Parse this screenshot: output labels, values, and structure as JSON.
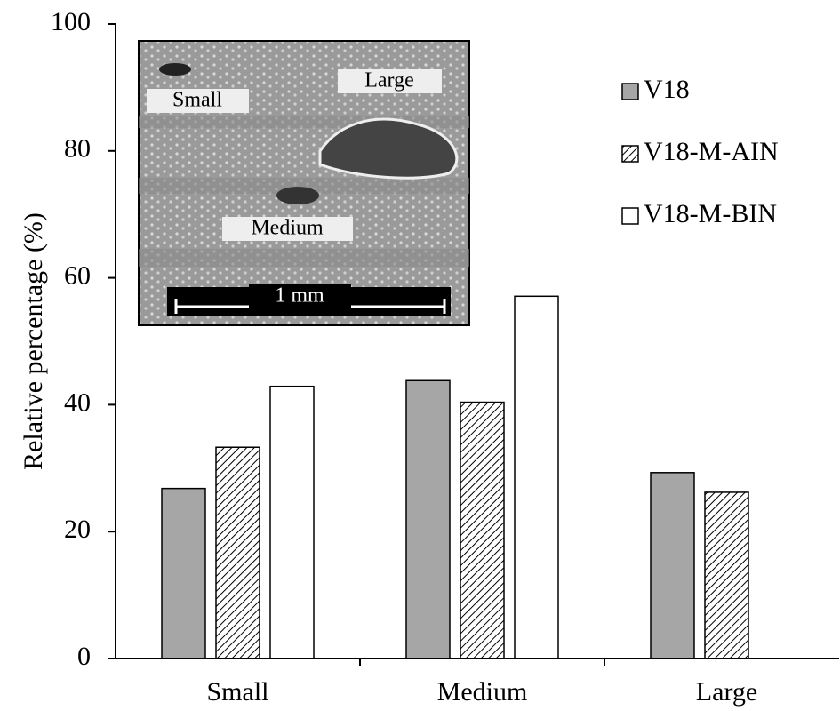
{
  "chart_data": {
    "type": "bar",
    "y_label": "Relative percentage (%)",
    "categories": [
      "Small",
      "Medium",
      "Large"
    ],
    "series": [
      {
        "name": "V18",
        "color": "#a6a6a6",
        "hatch": false,
        "values": [
          26.8,
          43.8,
          29.3
        ]
      },
      {
        "name": "V18-M-AIN",
        "color": "#ffffff",
        "hatch": true,
        "values": [
          33.3,
          40.4,
          26.2
        ]
      },
      {
        "name": "V18-M-BIN",
        "color": "#ffffff",
        "hatch": false,
        "values": [
          42.9,
          57.1,
          0
        ]
      }
    ],
    "ylim": [
      0,
      100
    ],
    "yticks": [
      0,
      20,
      40,
      60,
      80,
      100
    ],
    "grid": false,
    "legend": "upper right",
    "inset_labels": [
      "Small",
      "Large",
      "Medium",
      "1 mm"
    ]
  }
}
